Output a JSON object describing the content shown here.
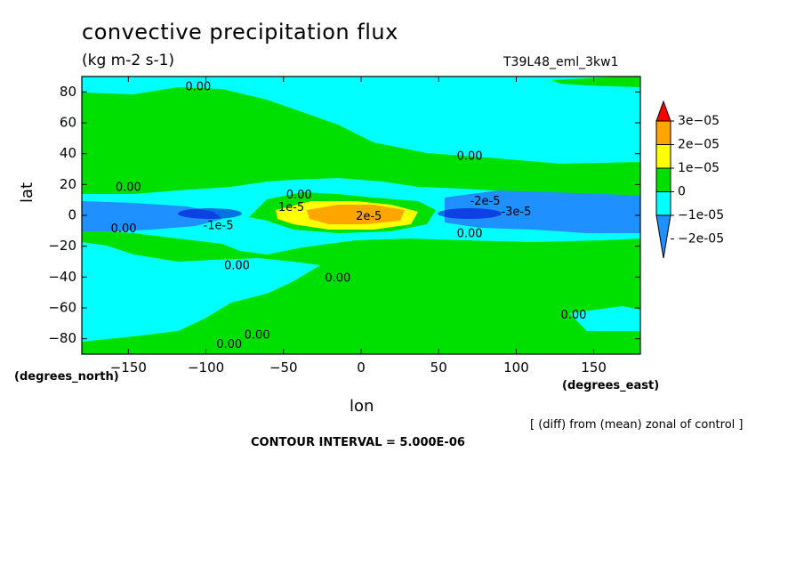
{
  "figure": {
    "title": "convective precipitation flux",
    "units": "(kg m-2 s-1)",
    "run_id": "T39L48_eml_3kw1",
    "lat_unit": "(degrees_north)",
    "lon_unit": "(degrees_east)",
    "source_note": "[ (diff) from (mean) zonal of control ]",
    "contour_interval": "CONTOUR INTERVAL = 5.000E-06"
  },
  "colors": {
    "neg2": "#1e90ff",
    "neg1": "#00ffff",
    "zero": "#00e000",
    "pos1": "#ffff00",
    "pos2": "#ffa500",
    "pos3": "#ff0000",
    "dark_blue": "#0000cd"
  },
  "chart_data": {
    "type": "heatmap",
    "subtype": "filled contour",
    "xlabel": "lon",
    "ylabel": "lat",
    "xlim": [
      -180,
      180
    ],
    "ylim": [
      -90,
      90
    ],
    "xticks": [
      -150,
      -100,
      -50,
      0,
      50,
      100,
      150
    ],
    "yticks": [
      -80,
      -60,
      -40,
      -20,
      0,
      20,
      40,
      60,
      80
    ],
    "colorbar": {
      "labels": [
        "3e-05",
        "2e-05",
        "1e-05",
        "0",
        "-1e-05",
        "-2e-05"
      ],
      "levels": [
        3e-05,
        2e-05,
        1e-05,
        0,
        -1e-05,
        -2e-05
      ]
    },
    "contour_labels": [
      {
        "text": "0.00",
        "lon": -105,
        "lat": 83
      },
      {
        "text": "0.00",
        "lon": 70,
        "lat": 38
      },
      {
        "text": "0.00",
        "lon": -150,
        "lat": 18
      },
      {
        "text": "0.00",
        "lon": -40,
        "lat": 13
      },
      {
        "text": "1e-5",
        "lon": -45,
        "lat": 5
      },
      {
        "text": "-2e-5",
        "lon": 80,
        "lat": 9
      },
      {
        "text": "-3e-5",
        "lon": 100,
        "lat": 2
      },
      {
        "text": "2e-5",
        "lon": 5,
        "lat": -1
      },
      {
        "text": "-1e-5",
        "lon": -92,
        "lat": -7
      },
      {
        "text": "0.00",
        "lon": -153,
        "lat": -9
      },
      {
        "text": "0.00",
        "lon": 70,
        "lat": -12
      },
      {
        "text": "0.00",
        "lon": -80,
        "lat": -33
      },
      {
        "text": "0.00",
        "lon": -15,
        "lat": -41
      },
      {
        "text": "0.00",
        "lon": 137,
        "lat": -65
      },
      {
        "text": "0.00",
        "lon": -67,
        "lat": -78
      },
      {
        "text": "0.00",
        "lon": -85,
        "lat": -84
      }
    ]
  }
}
